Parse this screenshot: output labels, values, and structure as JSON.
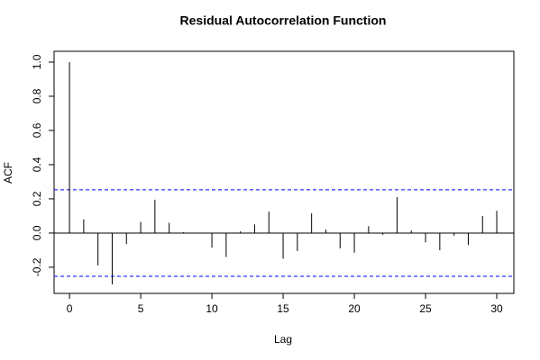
{
  "chart_data": {
    "type": "bar",
    "title": "Residual Autocorrelation Function",
    "x_label": "Lag",
    "y_label": "ACF",
    "x": [
      0,
      1,
      2,
      3,
      4,
      5,
      6,
      7,
      8,
      9,
      10,
      11,
      12,
      13,
      14,
      15,
      16,
      17,
      18,
      19,
      20,
      21,
      22,
      23,
      24,
      25,
      26,
      27,
      28,
      29,
      30
    ],
    "values": [
      1.0,
      0.08,
      -0.19,
      -0.3,
      -0.065,
      0.065,
      0.195,
      0.06,
      0.005,
      0,
      -0.085,
      -0.14,
      0.01,
      0.05,
      0.125,
      -0.15,
      -0.105,
      0.115,
      0.02,
      -0.09,
      -0.115,
      0.04,
      -0.01,
      0.21,
      0.015,
      -0.055,
      -0.1,
      -0.015,
      -0.07,
      0.1,
      0.13
    ],
    "color": "#000000",
    "hlines": [
      0.253,
      -0.253
    ],
    "hline_color": "#0000ff",
    "xlim": [
      -1.08,
      31.2
    ],
    "xticks": [
      0,
      5,
      10,
      15,
      20,
      25,
      30
    ],
    "ylim": [
      -0.353,
      1.063
    ],
    "yticks": [
      -0.2,
      {
        "value": 0,
        "label": "0.0"
      },
      0.2,
      0.4,
      0.6,
      0.8,
      {
        "value": 1,
        "label": "1.0"
      }
    ]
  }
}
